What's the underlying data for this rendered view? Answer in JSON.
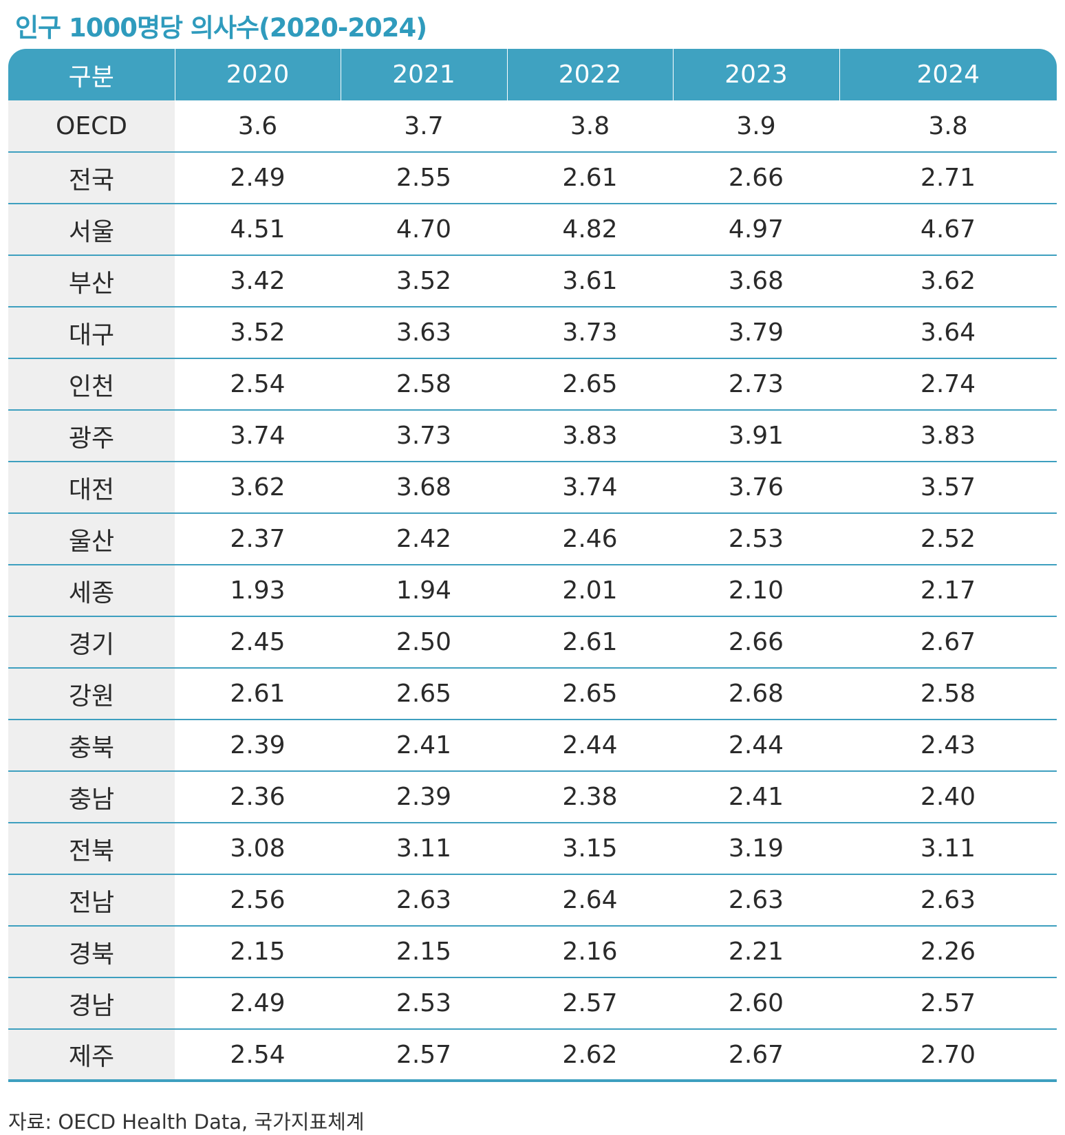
{
  "title": "인구 1000명당 의사수(2020-2024)",
  "table": {
    "headers": [
      "구분",
      "2020",
      "2021",
      "2022",
      "2023",
      "2024"
    ],
    "rows": [
      [
        "OECD",
        "3.6",
        "3.7",
        "3.8",
        "3.9",
        "3.8"
      ],
      [
        "전국",
        "2.49",
        "2.55",
        "2.61",
        "2.66",
        "2.71"
      ],
      [
        "서울",
        "4.51",
        "4.70",
        "4.82",
        "4.97",
        "4.67"
      ],
      [
        "부산",
        "3.42",
        "3.52",
        "3.61",
        "3.68",
        "3.62"
      ],
      [
        "대구",
        "3.52",
        "3.63",
        "3.73",
        "3.79",
        "3.64"
      ],
      [
        "인천",
        "2.54",
        "2.58",
        "2.65",
        "2.73",
        "2.74"
      ],
      [
        "광주",
        "3.74",
        "3.73",
        "3.83",
        "3.91",
        "3.83"
      ],
      [
        "대전",
        "3.62",
        "3.68",
        "3.74",
        "3.76",
        "3.57"
      ],
      [
        "울산",
        "2.37",
        "2.42",
        "2.46",
        "2.53",
        "2.52"
      ],
      [
        "세종",
        "1.93",
        "1.94",
        "2.01",
        "2.10",
        "2.17"
      ],
      [
        "경기",
        "2.45",
        "2.50",
        "2.61",
        "2.66",
        "2.67"
      ],
      [
        "강원",
        "2.61",
        "2.65",
        "2.65",
        "2.68",
        "2.58"
      ],
      [
        "충북",
        "2.39",
        "2.41",
        "2.44",
        "2.44",
        "2.43"
      ],
      [
        "충남",
        "2.36",
        "2.39",
        "2.38",
        "2.41",
        "2.40"
      ],
      [
        "전북",
        "3.08",
        "3.11",
        "3.15",
        "3.19",
        "3.11"
      ],
      [
        "전남",
        "2.56",
        "2.63",
        "2.64",
        "2.63",
        "2.63"
      ],
      [
        "경북",
        "2.15",
        "2.15",
        "2.16",
        "2.21",
        "2.26"
      ],
      [
        "경남",
        "2.49",
        "2.53",
        "2.57",
        "2.60",
        "2.57"
      ],
      [
        "제주",
        "2.54",
        "2.57",
        "2.62",
        "2.67",
        "2.70"
      ]
    ]
  },
  "source": "자료: OECD Health Data, 국가지표체계",
  "colors": {
    "title": "#2f9bbd",
    "header_bg": "#3fa2c1",
    "label_bg": "#efefef",
    "rule": "#3d9fbf"
  }
}
